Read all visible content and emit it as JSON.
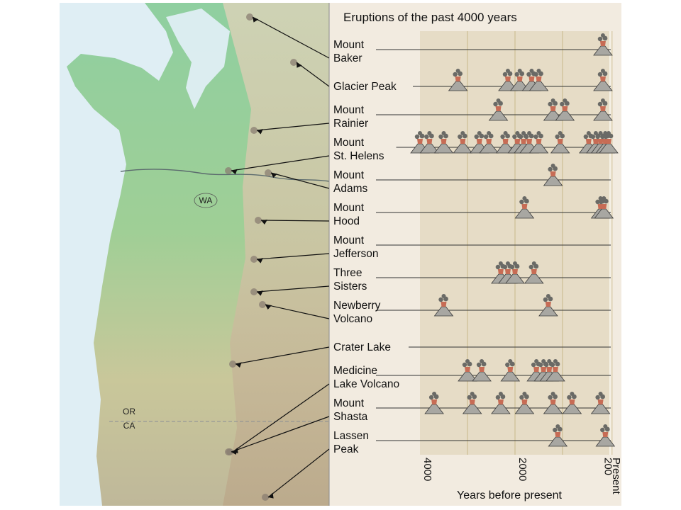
{
  "chart_data": {
    "type": "scatter",
    "title": "Eruptions of the past 4000 years",
    "xlabel": "Years before present",
    "x_ticks": [
      "4000",
      "2000",
      "200",
      "Present"
    ],
    "x_reversed": true,
    "xlim": [
      4000,
      0
    ],
    "map_labels": [
      "WA",
      "OR",
      "CA"
    ],
    "colors": {
      "panel": "#f2ebe0",
      "plot_band": "#e6dcc6",
      "gridline": "#c8b98a",
      "volcano": "#a8a7a2",
      "plume": "#c76c55",
      "smoke": "#6a6a66"
    },
    "series": [
      {
        "name": "Mount Baker",
        "line_start": 4000,
        "eruptions": [
          150
        ]
      },
      {
        "name": "Glacier Peak",
        "line_start": 4400,
        "eruptions": [
          3200,
          2150,
          1900,
          1650,
          1500,
          150
        ]
      },
      {
        "name": "Mount Rainier",
        "line_start": 3000,
        "eruptions": [
          2350,
          1200,
          950,
          150
        ]
      },
      {
        "name": "Mount St. Helens",
        "line_start": 4500,
        "eruptions": [
          4000,
          3800,
          3500,
          3100,
          2750,
          2550,
          2200,
          1950,
          1820,
          1700,
          1500,
          1050,
          450,
          300,
          200,
          100,
          30
        ]
      },
      {
        "name": "Mount Adams",
        "line_start": 4000,
        "eruptions": [
          1200
        ]
      },
      {
        "name": "Mount Hood",
        "line_start": 4000,
        "eruptions": [
          1800,
          200,
          130
        ]
      },
      {
        "name": "Mount Jefferson",
        "line_start": 4000,
        "eruptions": []
      },
      {
        "name": "Three Sisters",
        "line_start": 4000,
        "eruptions": [
          2300,
          2150,
          2000,
          1600
        ]
      },
      {
        "name": "Newberry Volcano",
        "line_start": 4000,
        "eruptions": [
          3500,
          1300
        ]
      },
      {
        "name": "Crater Lake",
        "line_start": 4000,
        "eruptions": []
      },
      {
        "name": "Medicine Lake Volcano",
        "line_start": 4000,
        "eruptions": [
          3000,
          2700,
          2100,
          1550,
          1400,
          1280,
          1150
        ]
      },
      {
        "name": "Mount Shasta",
        "line_start": 4000,
        "eruptions": [
          3700,
          2900,
          2300,
          1800,
          1200,
          800,
          200
        ]
      },
      {
        "name": "Lassen Peak",
        "line_start": 4000,
        "eruptions": [
          1100,
          100
        ]
      }
    ]
  },
  "label_lines": [
    [
      "Mount",
      "Baker"
    ],
    [
      "Glacier Peak"
    ],
    [
      "Mount",
      "Rainier"
    ],
    [
      "Mount",
      "St. Helens"
    ],
    [
      "Mount",
      "Adams"
    ],
    [
      "Mount",
      "Hood"
    ],
    [
      "Mount",
      "Jefferson"
    ],
    [
      "Three",
      "Sisters"
    ],
    [
      "Newberry",
      "Volcano"
    ],
    [
      "Crater Lake"
    ],
    [
      "Medicine",
      "Lake Volcano"
    ],
    [
      "Mount",
      "Shasta"
    ],
    [
      "Lassen",
      "Peak"
    ]
  ]
}
